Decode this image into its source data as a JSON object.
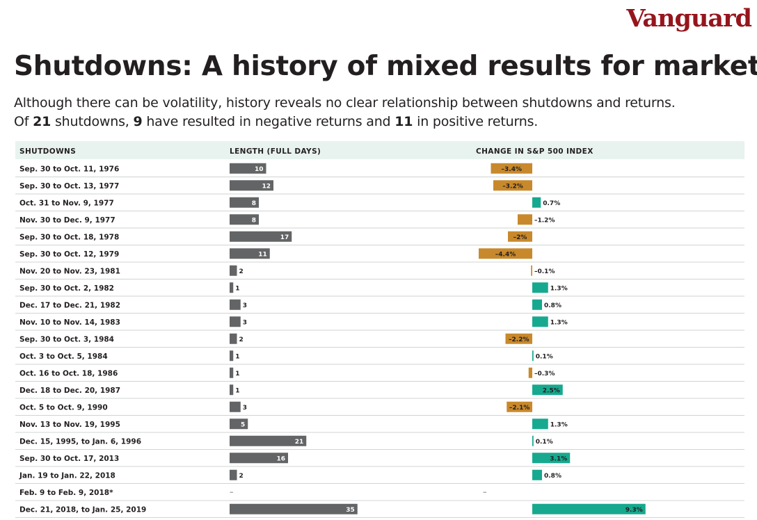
{
  "brand": {
    "logo_text": "Vanguard",
    "logo_color": "#96151d"
  },
  "title": "Shutdowns: A history of mixed results for markets",
  "subtitle": {
    "line1": "Although there can be volatility, history reveals no clear relationship between shutdowns and returns.",
    "line2_parts": [
      "Of ",
      "21",
      " shutdowns, ",
      "9",
      " have resulted in negative returns and ",
      "11",
      " in positive returns."
    ]
  },
  "columns": {
    "shutdowns": "SHUTDOWNS",
    "length": "LENGTH (FULL DAYS)",
    "change": "CHANGE IN S&P 500 INDEX"
  },
  "colors": {
    "length_bar": "#636466",
    "negative": "#c8892c",
    "positive": "#17a98f",
    "header_band": "#e8f3ef"
  },
  "chart_data": {
    "type": "table",
    "rows": [
      {
        "period": "Sep. 30 to Oct. 11, 1976",
        "days": 10,
        "days_label": "10",
        "change": -3.4,
        "change_label": "–3.4%"
      },
      {
        "period": "Sep. 30 to Oct. 13, 1977",
        "days": 12,
        "days_label": "12",
        "change": -3.2,
        "change_label": "–3.2%"
      },
      {
        "period": "Oct. 31 to Nov. 9, 1977",
        "days": 8,
        "days_label": "8",
        "change": 0.7,
        "change_label": "0.7%"
      },
      {
        "period": "Nov. 30 to Dec. 9, 1977",
        "days": 8,
        "days_label": "8",
        "change": -1.2,
        "change_label": "–1.2%"
      },
      {
        "period": "Sep. 30 to Oct. 18, 1978",
        "days": 17,
        "days_label": "17",
        "change": -2.0,
        "change_label": "–2%"
      },
      {
        "period": "Sep. 30 to Oct. 12, 1979",
        "days": 11,
        "days_label": "11",
        "change": -4.4,
        "change_label": "–4.4%"
      },
      {
        "period": "Nov. 20 to Nov. 23, 1981",
        "days": 2,
        "days_label": "2",
        "change": -0.1,
        "change_label": "–0.1%"
      },
      {
        "period": "Sep. 30 to Oct. 2, 1982",
        "days": 1,
        "days_label": "1",
        "change": 1.3,
        "change_label": "1.3%"
      },
      {
        "period": "Dec. 17 to Dec. 21, 1982",
        "days": 3,
        "days_label": "3",
        "change": 0.8,
        "change_label": "0.8%"
      },
      {
        "period": "Nov. 10 to Nov. 14, 1983",
        "days": 3,
        "days_label": "3",
        "change": 1.3,
        "change_label": "1.3%"
      },
      {
        "period": "Sep. 30 to Oct. 3, 1984",
        "days": 2,
        "days_label": "2",
        "change": -2.2,
        "change_label": "–2.2%"
      },
      {
        "period": "Oct. 3 to Oct. 5, 1984",
        "days": 1,
        "days_label": "1",
        "change": 0.1,
        "change_label": "0.1%"
      },
      {
        "period": "Oct. 16 to Oct. 18, 1986",
        "days": 1,
        "days_label": "1",
        "change": -0.3,
        "change_label": "–0.3%"
      },
      {
        "period": "Dec. 18 to Dec. 20, 1987",
        "days": 1,
        "days_label": "1",
        "change": 2.5,
        "change_label": "2.5%"
      },
      {
        "period": "Oct. 5 to Oct. 9, 1990",
        "days": 3,
        "days_label": "3",
        "change": -2.1,
        "change_label": "–2.1%"
      },
      {
        "period": "Nov. 13 to Nov. 19, 1995",
        "days": 5,
        "days_label": "5",
        "change": 1.3,
        "change_label": "1.3%"
      },
      {
        "period": "Dec. 15, 1995, to Jan. 6, 1996",
        "days": 21,
        "days_label": "21",
        "change": 0.1,
        "change_label": "0.1%"
      },
      {
        "period": "Sep. 30 to Oct. 17, 2013",
        "days": 16,
        "days_label": "16",
        "change": 3.1,
        "change_label": "3.1%"
      },
      {
        "period": "Jan. 19 to Jan. 22, 2018",
        "days": 2,
        "days_label": "2",
        "change": 0.8,
        "change_label": "0.8%"
      },
      {
        "period": "Feb. 9 to Feb. 9, 2018*",
        "days": null,
        "days_label": "–",
        "change": null,
        "change_label": "–"
      },
      {
        "period": "Dec. 21, 2018, to Jan. 25, 2019",
        "days": 35,
        "days_label": "35",
        "change": 9.3,
        "change_label": "9.3%"
      }
    ]
  }
}
